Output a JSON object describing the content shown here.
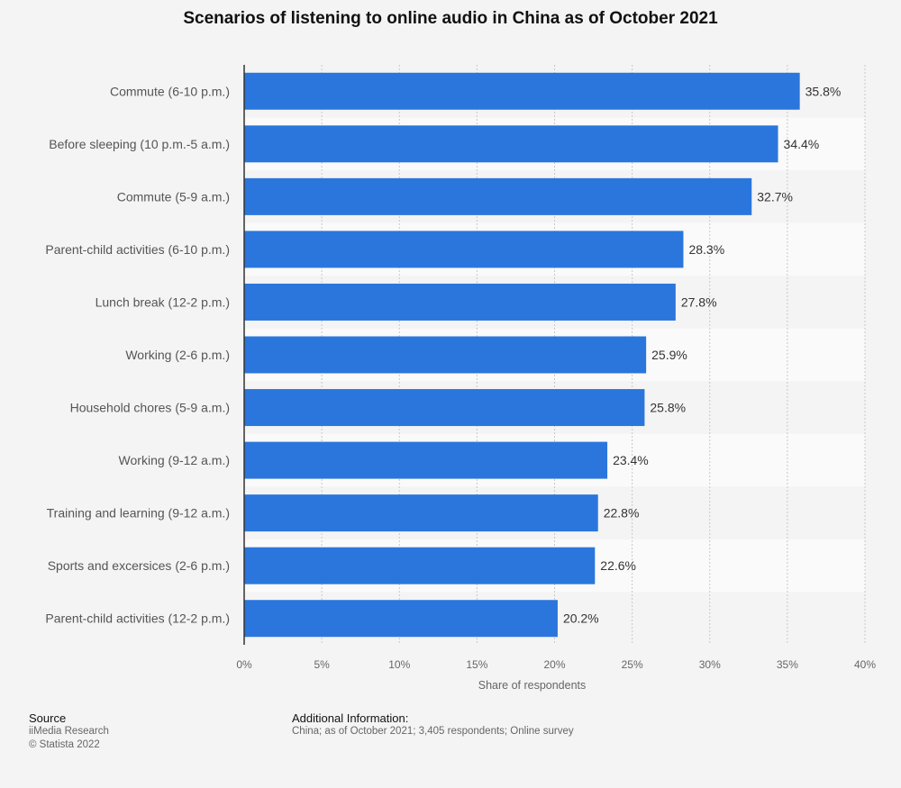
{
  "chart_data": {
    "type": "bar",
    "orientation": "horizontal",
    "title": "Scenarios of listening to online audio in China as of October 2021",
    "xlabel": "Share of respondents",
    "ylabel": "",
    "xlim": [
      0,
      40
    ],
    "ticks": [
      "0%",
      "5%",
      "10%",
      "15%",
      "20%",
      "25%",
      "30%",
      "35%",
      "40%"
    ],
    "grid": true,
    "bar_color": "#2a76dd",
    "categories": [
      "Commute (6-10 p.m.)",
      "Before sleeping (10 p.m.-5 a.m.)",
      "Commute (5-9 a.m.)",
      "Parent-child activities (6-10 p.m.)",
      "Lunch break (12-2 p.m.)",
      "Working (2-6 p.m.)",
      "Household chores (5-9 a.m.)",
      "Working (9-12 a.m.)",
      "Training and learning (9-12 a.m.)",
      "Sports and excersices (2-6 p.m.)",
      "Parent-child activities (12-2 p.m.)"
    ],
    "values": [
      35.8,
      34.4,
      32.7,
      28.3,
      27.8,
      25.9,
      25.8,
      23.4,
      22.8,
      22.6,
      20.2
    ],
    "value_labels": [
      "35.8%",
      "34.4%",
      "32.7%",
      "28.3%",
      "27.8%",
      "25.9%",
      "25.8%",
      "23.4%",
      "22.8%",
      "22.6%",
      "20.2%"
    ]
  },
  "footer": {
    "source_heading": "Source",
    "source_lines": [
      "iiMedia Research",
      "© Statista 2022"
    ],
    "info_heading": "Additional Information:",
    "info_text": "China; as of October 2021; 3,405 respondents; Online survey"
  }
}
